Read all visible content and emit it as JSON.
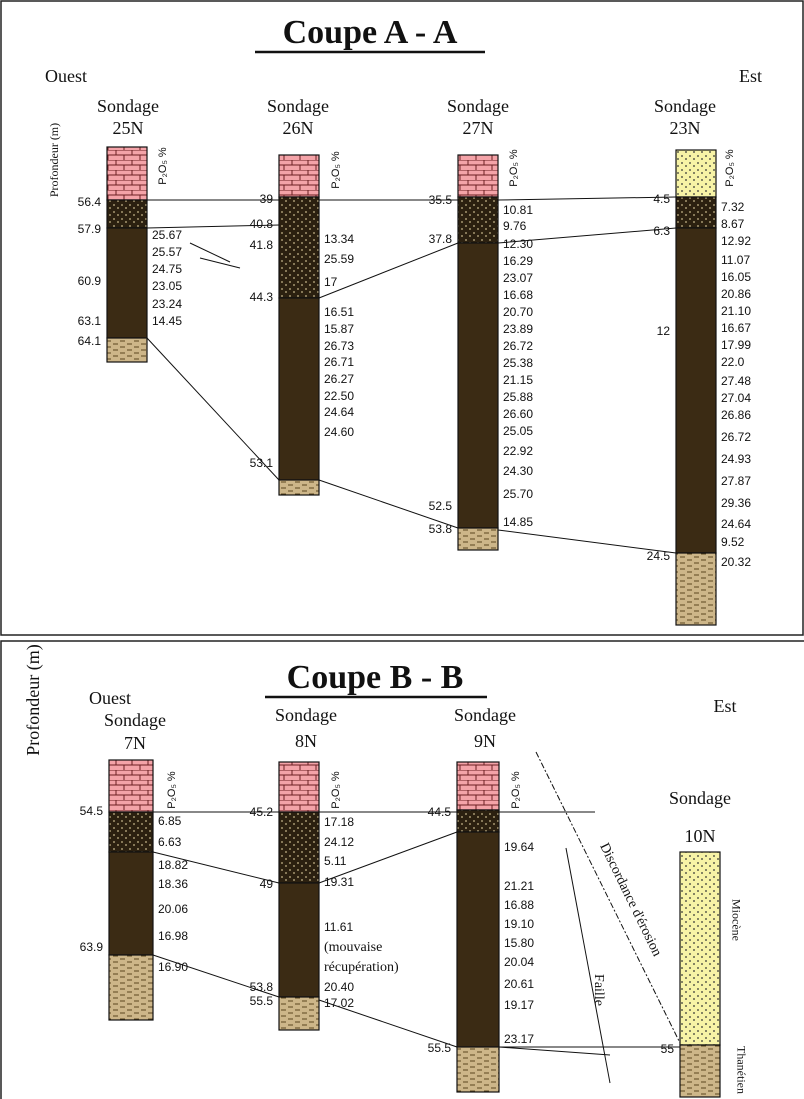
{
  "sections": [
    {
      "title": "Coupe A - A",
      "west": "Ouest",
      "east": "Est",
      "depth_axis": "Profondeur (m)",
      "boreholes": [
        {
          "label": "Sondage",
          "name": "25N",
          "p2o5": "P₂O₅ %",
          "depths": [
            "56.4",
            "57.9",
            "60.9",
            "63.1",
            "64.1"
          ],
          "values": [
            "25.67",
            "25.57",
            "24.75",
            "23.05",
            "23.24",
            "14.45"
          ]
        },
        {
          "label": "Sondage",
          "name": "26N",
          "p2o5": "P₂O₅ %",
          "depths": [
            "39",
            "40.8",
            "41.8",
            "44.3",
            "53.1"
          ],
          "values": [
            "13.34",
            "25.59",
            "17",
            "16.51",
            "15.87",
            "26.73",
            "26.71",
            "26.27",
            "22.50",
            "24.64",
            "24.60"
          ]
        },
        {
          "label": "Sondage",
          "name": "27N",
          "p2o5": "P₂O₅ %",
          "depths": [
            "35.5",
            "37.8",
            "52.5",
            "53.8"
          ],
          "values": [
            "10.81",
            "9.76",
            "12.30",
            "16.29",
            "23.07",
            "16.68",
            "20.70",
            "23.89",
            "26.72",
            "25.38",
            "21.15",
            "25.88",
            "26.60",
            "25.05",
            "22.92",
            "24.30",
            "25.70",
            "14.85"
          ]
        },
        {
          "label": "Sondage",
          "name": "23N",
          "p2o5": "P₂O₅ %",
          "depths": [
            "4.5",
            "6.3",
            "12",
            "24.5"
          ],
          "values": [
            "7.32",
            "8.67",
            "12.92",
            "11.07",
            "16.05",
            "20.86",
            "21.10",
            "16.67",
            "17.99",
            "22.0",
            "27.48",
            "27.04",
            "26.86",
            "26.72",
            "24.93",
            "27.87",
            "29.36",
            "24.64",
            "9.52",
            "20.32"
          ]
        }
      ]
    },
    {
      "title": "Coupe B - B",
      "west": "Ouest",
      "east": "Est",
      "depth_axis": "Profondeur (m)",
      "boreholes": [
        {
          "label": "Sondage",
          "name": "7N",
          "p2o5": "P₂O₅ %",
          "depths": [
            "54.5",
            "63.9"
          ],
          "values": [
            "6.85",
            "6.63",
            "18.82",
            "18.36",
            "20.06",
            "16.98",
            "16.90"
          ]
        },
        {
          "label": "Sondage",
          "name": "8N",
          "p2o5": "P₂O₅ %",
          "depths": [
            "45.2",
            "49",
            "53.8",
            "55.5"
          ],
          "values": [
            "17.18",
            "24.12",
            "5.11",
            "19.31",
            "11.61",
            "(mouvaise",
            "récupération)",
            "20.40",
            "17.02"
          ]
        },
        {
          "label": "Sondage",
          "name": "9N",
          "p2o5": "P₂O₅ %",
          "depths": [
            "44.5",
            "55.5"
          ],
          "values": [
            "19.64",
            "21.21",
            "16.88",
            "19.10",
            "15.80",
            "20.04",
            "20.61",
            "19.17",
            "23.17"
          ]
        },
        {
          "label": "Sondage",
          "name": "10N",
          "depths": [
            "55"
          ],
          "layer_labels": [
            "Miocène",
            "Thanétien"
          ]
        }
      ],
      "annotations": [
        "Discordance d'érosion",
        "Faille"
      ]
    }
  ]
}
